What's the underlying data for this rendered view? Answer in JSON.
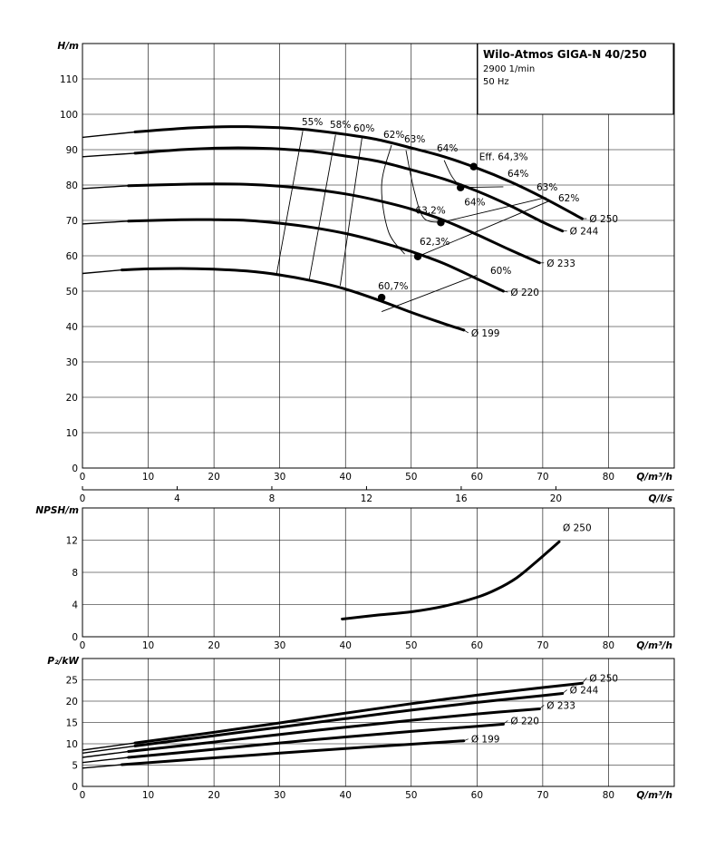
{
  "title": "Wilo-Atmos GIGA-N 40/250",
  "speed": "2900 1/min",
  "frequency": "50 Hz",
  "diameter_prefix": "Ø",
  "chart_data": [
    {
      "id": "head",
      "type": "line",
      "ylabel": "H/m",
      "xlabel": "Q/m³/h",
      "xlim": [
        0,
        90
      ],
      "ylim": [
        0,
        120
      ],
      "xticks": [
        0,
        10,
        20,
        30,
        40,
        50,
        60,
        70,
        80
      ],
      "yticks": [
        0,
        10,
        20,
        30,
        40,
        50,
        60,
        70,
        80,
        90,
        100,
        110
      ],
      "secondary_axis": {
        "label": "Q/l/s",
        "ticks": [
          0,
          4,
          8,
          12,
          16,
          20
        ],
        "factor": 3.6
      },
      "series": [
        {
          "name": "250",
          "x": [
            0,
            8,
            15,
            20,
            25,
            30,
            35,
            40,
            45,
            50,
            55,
            60,
            65,
            70,
            76
          ],
          "y": [
            93.5,
            95,
            96,
            96.4,
            96.5,
            96.2,
            95.5,
            94.3,
            92.8,
            90.5,
            88,
            84.8,
            81,
            76.5,
            70.5
          ],
          "thin_until": 8
        },
        {
          "name": "244",
          "x": [
            0,
            8,
            15,
            20,
            25,
            30,
            35,
            40,
            45,
            50,
            55,
            60,
            65,
            70,
            73
          ],
          "y": [
            88,
            89,
            90,
            90.4,
            90.5,
            90.2,
            89.5,
            88.2,
            86.7,
            84.3,
            81.7,
            78.3,
            74.2,
            69.5,
            67
          ],
          "thin_until": 8
        },
        {
          "name": "233",
          "x": [
            0,
            7,
            15,
            20,
            25,
            30,
            35,
            40,
            45,
            50,
            55,
            60,
            65,
            69.5
          ],
          "y": [
            79,
            79.8,
            80.2,
            80.3,
            80.2,
            79.7,
            78.8,
            77.5,
            75.6,
            73.2,
            70,
            66,
            61.7,
            58
          ],
          "thin_until": 7
        },
        {
          "name": "220",
          "x": [
            0,
            7,
            15,
            20,
            25,
            30,
            35,
            40,
            45,
            50,
            55,
            60,
            64
          ],
          "y": [
            69,
            69.8,
            70.2,
            70.2,
            70,
            69.2,
            68,
            66.3,
            64,
            61.2,
            57.8,
            53.5,
            50
          ],
          "thin_until": 7
        },
        {
          "name": "199",
          "x": [
            0,
            6,
            10,
            15,
            20,
            25,
            30,
            35,
            40,
            45,
            50,
            55,
            58
          ],
          "y": [
            55,
            56,
            56.3,
            56.4,
            56.2,
            55.7,
            54.6,
            52.9,
            50.6,
            47.5,
            44,
            40.8,
            39
          ],
          "thin_until": 6
        }
      ],
      "efficiency_points": [
        {
          "x": 59.5,
          "y": 85.2,
          "label": "Eff. 64,3%"
        },
        {
          "x": 57.5,
          "y": 79.3,
          "label": "64%"
        },
        {
          "x": 54.5,
          "y": 69.4,
          "label": "63,2%"
        },
        {
          "x": 51,
          "y": 59.8,
          "label": "62,3%"
        },
        {
          "x": 45.5,
          "y": 48.2,
          "label": "60,7%"
        }
      ],
      "iso_lines": [
        {
          "label": "55%",
          "x": [
            29.5,
            33.5
          ],
          "y": [
            54.5,
            95.3
          ]
        },
        {
          "label": "58%",
          "x": [
            34.5,
            38.5
          ],
          "y": [
            53.3,
            94.2
          ]
        },
        {
          "label": "60%",
          "x": [
            39.2,
            42.5
          ],
          "y": [
            51.6,
            93.3
          ]
        },
        {
          "label": "62%",
          "x": [
            47,
            45.5,
            46.5,
            49
          ],
          "y": [
            91.3,
            80,
            67,
            60.5
          ]
        },
        {
          "label": "63%",
          "x": [
            49.2,
            50.5,
            52,
            55
          ],
          "y": [
            89.8,
            78,
            70.5,
            69.5
          ]
        },
        {
          "label": "64%",
          "x": [
            55,
            56,
            57,
            58
          ],
          "y": [
            87,
            83,
            80.5,
            79.3
          ]
        },
        {
          "label": "64%",
          "x": [
            57.5,
            64
          ],
          "y": [
            79.3,
            79.5
          ]
        },
        {
          "label": "63%",
          "x": [
            54.5,
            70.5
          ],
          "y": [
            69.4,
            76.5
          ]
        },
        {
          "label": "62%",
          "x": [
            51,
            71
          ],
          "y": [
            59.8,
            75.5
          ]
        },
        {
          "label": "60%",
          "x": [
            45.5,
            60
          ],
          "y": [
            44.2,
            54.5
          ]
        }
      ]
    },
    {
      "id": "npsh",
      "type": "line",
      "ylabel": "NPSH/m",
      "xlabel": "Q/m³/h",
      "xlim": [
        0,
        90
      ],
      "ylim": [
        0,
        16
      ],
      "xticks": [
        0,
        10,
        20,
        30,
        40,
        50,
        60,
        70,
        80
      ],
      "yticks": [
        0,
        4,
        8,
        12
      ],
      "series": [
        {
          "name": "250",
          "x": [
            39.5,
            45,
            50,
            55,
            60,
            63,
            66,
            69,
            72.5
          ],
          "y": [
            2.2,
            2.7,
            3.1,
            3.8,
            4.9,
            5.9,
            7.3,
            9.3,
            11.8
          ]
        }
      ]
    },
    {
      "id": "power",
      "type": "line",
      "ylabel": "P₂/kW",
      "xlabel": "Q/m³/h",
      "xlim": [
        0,
        90
      ],
      "ylim": [
        0,
        30
      ],
      "xticks": [
        0,
        10,
        20,
        30,
        40,
        50,
        60,
        70,
        80
      ],
      "yticks": [
        0,
        5,
        10,
        15,
        20,
        25
      ],
      "series": [
        {
          "name": "250",
          "x": [
            0,
            8,
            20,
            30,
            40,
            50,
            60,
            70,
            76
          ],
          "y": [
            8.5,
            10.2,
            12.7,
            14.9,
            17.2,
            19.4,
            21.4,
            23.2,
            24.2
          ],
          "thin_until": 8
        },
        {
          "name": "244",
          "x": [
            0,
            8,
            20,
            30,
            40,
            50,
            60,
            70,
            73
          ],
          "y": [
            7.8,
            9.5,
            11.9,
            13.9,
            15.9,
            17.9,
            19.7,
            21.3,
            21.8
          ],
          "thin_until": 8
        },
        {
          "name": "233",
          "x": [
            0,
            7,
            20,
            30,
            40,
            50,
            60,
            69.5
          ],
          "y": [
            6.8,
            8.2,
            10.4,
            12.2,
            13.9,
            15.5,
            17,
            18.2
          ],
          "thin_until": 7
        },
        {
          "name": "220",
          "x": [
            0,
            7,
            20,
            30,
            40,
            50,
            60,
            64
          ],
          "y": [
            5.6,
            6.8,
            8.7,
            10.2,
            11.6,
            12.9,
            14.1,
            14.6
          ],
          "thin_until": 7
        },
        {
          "name": "199",
          "x": [
            0,
            6,
            20,
            30,
            40,
            50,
            58
          ],
          "y": [
            4.3,
            5.1,
            6.7,
            7.8,
            8.9,
            9.9,
            10.7
          ],
          "thin_until": 6
        }
      ]
    }
  ]
}
